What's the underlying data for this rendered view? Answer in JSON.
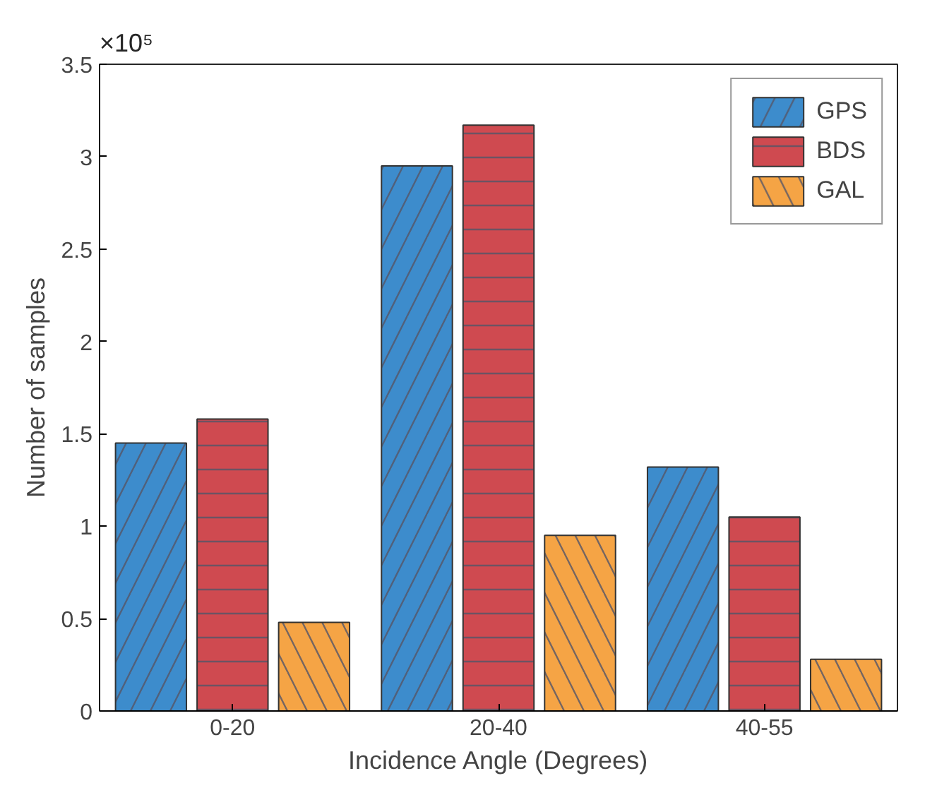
{
  "chart_data": {
    "type": "bar",
    "categories": [
      "0-20",
      "20-40",
      "40-55"
    ],
    "series": [
      {
        "name": "GPS",
        "color": "#3d8ccc",
        "values": [
          1.45,
          2.95,
          1.32
        ]
      },
      {
        "name": "BDS",
        "color": "#cf4a50",
        "values": [
          1.58,
          3.17,
          1.05
        ]
      },
      {
        "name": "GAL",
        "color": "#f5a445",
        "values": [
          0.48,
          0.95,
          0.28
        ]
      }
    ],
    "xlabel": "Incidence Angle (Degrees)",
    "ylabel": "Number of samples",
    "ylim": [
      0,
      3.5
    ],
    "yticks": [
      0,
      0.5,
      1,
      1.5,
      2,
      2.5,
      3,
      3.5
    ],
    "annotations": [
      "×10⁵"
    ],
    "legend": "top right",
    "grid": false
  }
}
